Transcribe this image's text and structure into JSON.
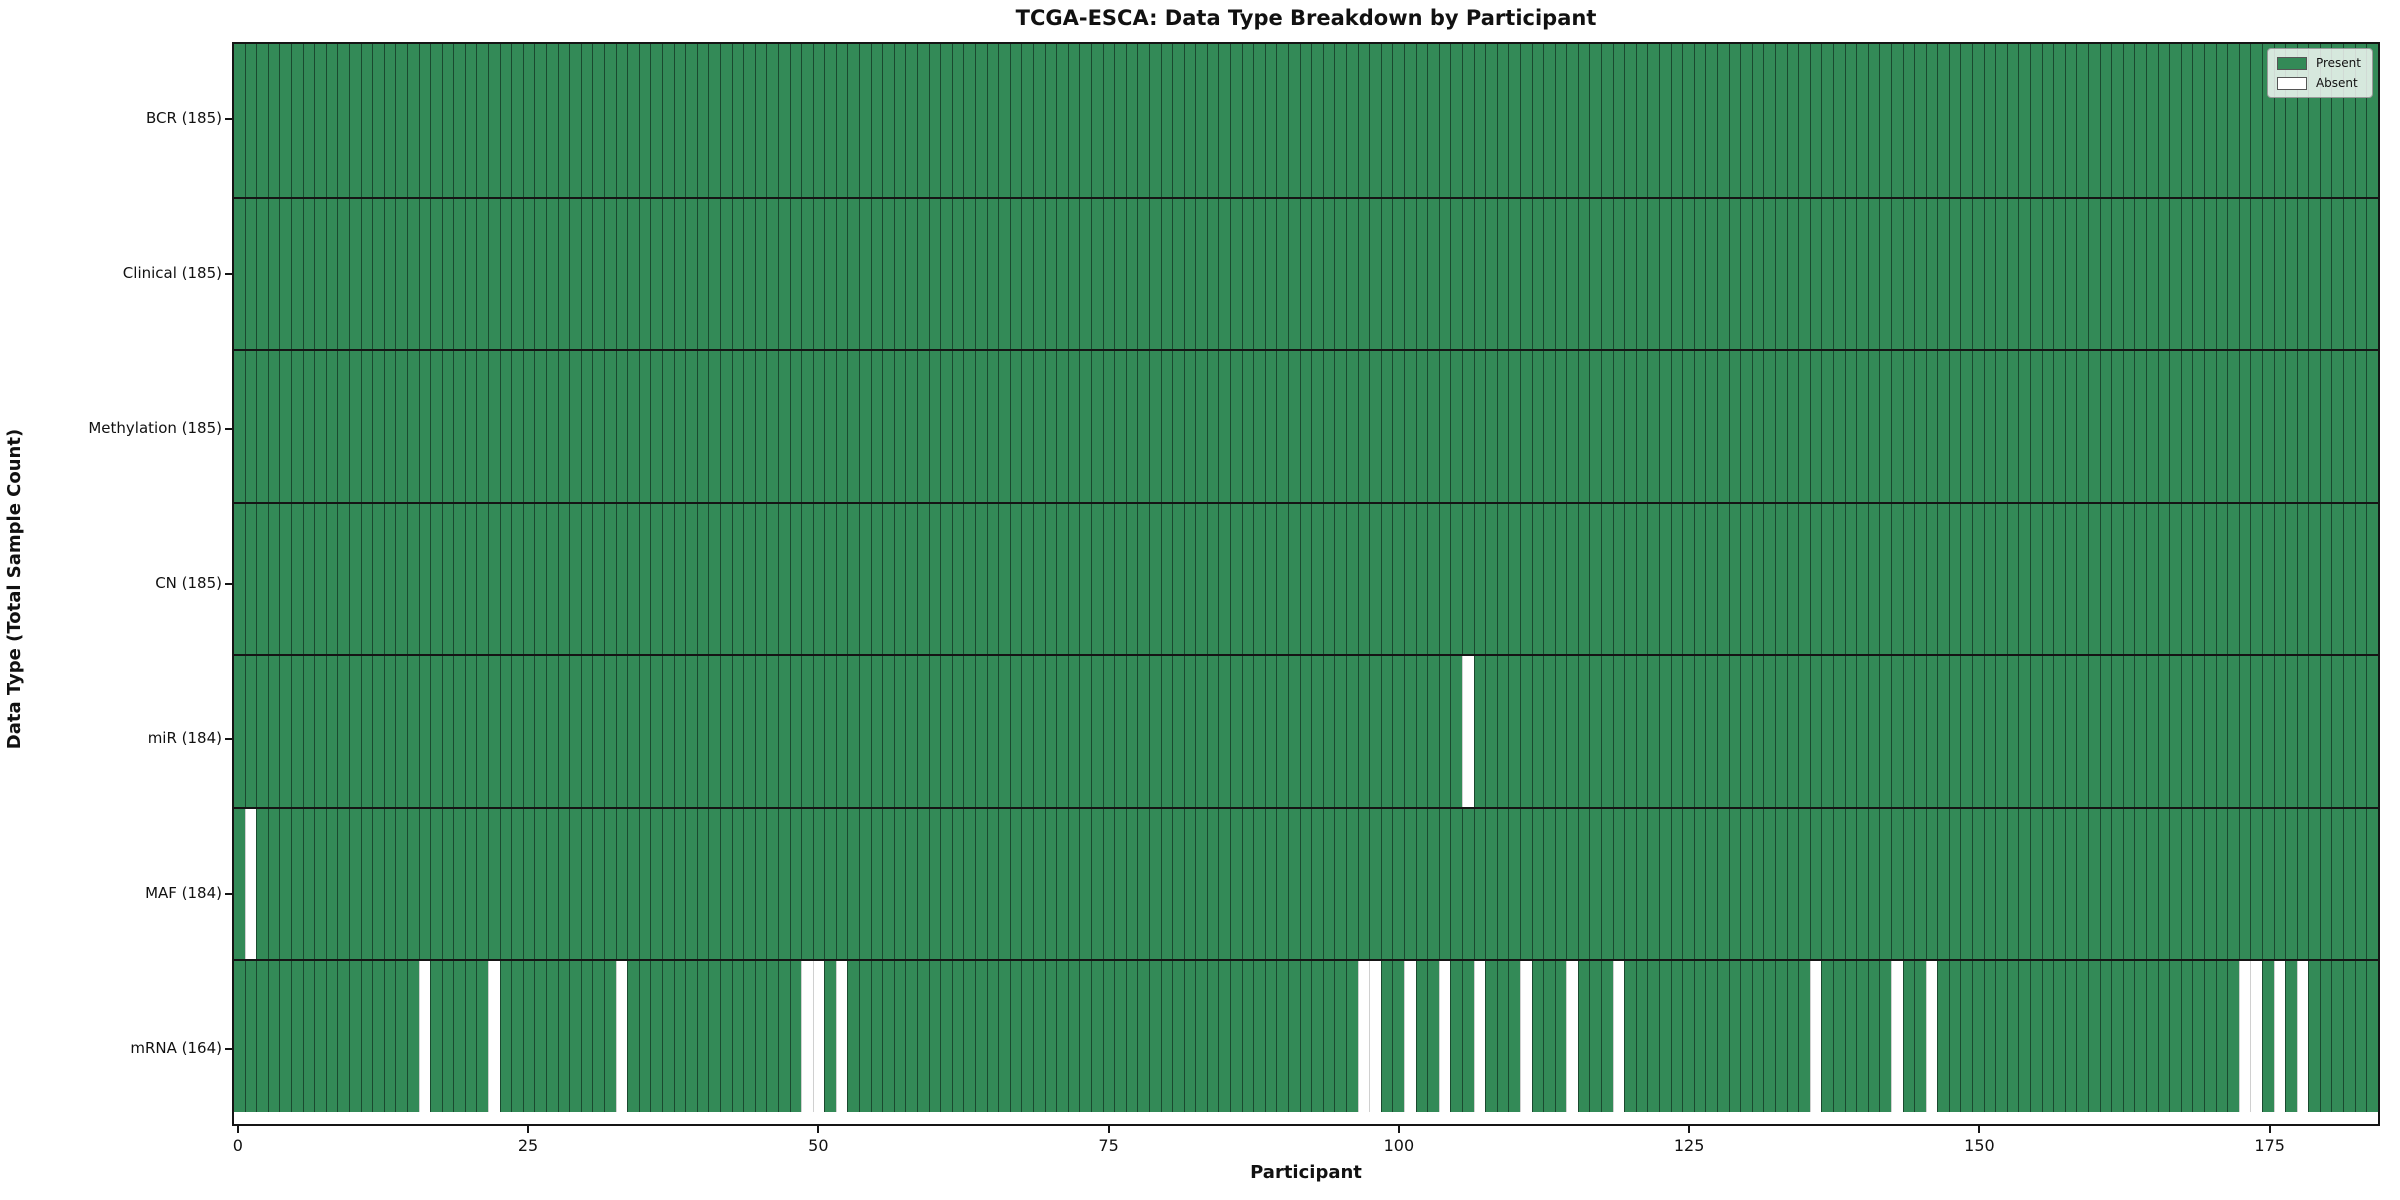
{
  "colors": {
    "present": "#338a57",
    "absent": "#ffffff",
    "present_edge": "rgba(10,30,20,0.60)",
    "absent_edge": "rgba(150,150,150,0.45)",
    "row_border": "#151515",
    "legend_border": "#999999"
  },
  "chart_data": {
    "type": "heatmap",
    "title": "TCGA-ESCA: Data Type Breakdown by Participant",
    "xlabel": "Participant",
    "ylabel": "Data Type (Total Sample Count)",
    "x_ticks": [
      0,
      25,
      50,
      75,
      100,
      125,
      150,
      175
    ],
    "n_participants": 185,
    "x_range": [
      0,
      184
    ],
    "grid": false,
    "legend_position": "upper right",
    "legend": [
      {
        "label": "Present",
        "color_key": "present"
      },
      {
        "label": "Absent",
        "color_key": "absent"
      }
    ],
    "rows": [
      {
        "label": "BCR (185)",
        "data_type": "BCR",
        "count": 185,
        "absent_participants": []
      },
      {
        "label": "Clinical (185)",
        "data_type": "Clinical",
        "count": 185,
        "absent_participants": []
      },
      {
        "label": "Methylation (185)",
        "data_type": "Methylation",
        "count": 185,
        "absent_participants": []
      },
      {
        "label": "CN (185)",
        "data_type": "CN",
        "count": 185,
        "absent_participants": []
      },
      {
        "label": "miR (184)",
        "data_type": "miR",
        "count": 184,
        "absent_participants": [
          106
        ]
      },
      {
        "label": "MAF (184)",
        "data_type": "MAF",
        "count": 184,
        "absent_participants": [
          1
        ]
      },
      {
        "label": "mRNA (164)",
        "data_type": "mRNA",
        "count": 164,
        "absent_participants": [
          16,
          22,
          33,
          49,
          50,
          52,
          97,
          98,
          101,
          104,
          107,
          111,
          115,
          119,
          136,
          143,
          146,
          173,
          174,
          176,
          178
        ]
      }
    ]
  }
}
